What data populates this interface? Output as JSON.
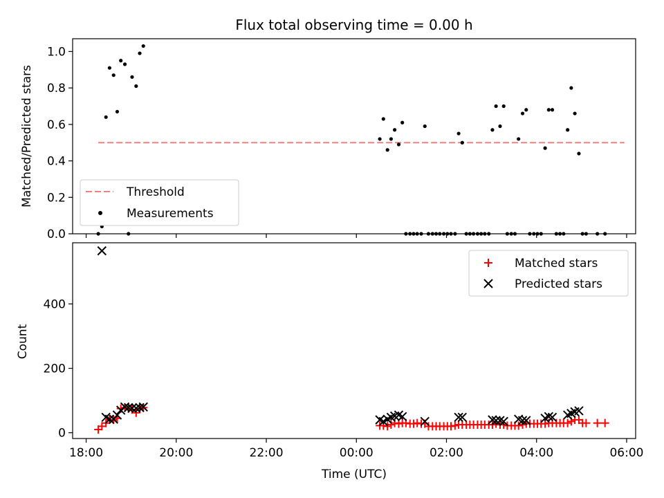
{
  "title": "Flux total observing time = 0.00 h",
  "chart_data": [
    {
      "type": "scatter",
      "panel": "top",
      "ylabel": "Matched/Predicted stars",
      "xlabel": "",
      "xlim_hours": [
        17.7,
        30.2
      ],
      "ylim": [
        0,
        1.07
      ],
      "yticks": [
        "0.0",
        "0.2",
        "0.4",
        "0.6",
        "0.8",
        "1.0"
      ],
      "grid": false,
      "legend_position": "lower-left",
      "threshold": {
        "name": "Threshold",
        "value": 0.5,
        "x_range": [
          18.27,
          29.95
        ],
        "color": "#f08080"
      },
      "series": [
        {
          "name": "Measurements",
          "color": "#000000",
          "points": [
            [
              18.27,
              0.0
            ],
            [
              18.35,
              0.04
            ],
            [
              18.44,
              0.64
            ],
            [
              18.52,
              0.91
            ],
            [
              18.61,
              0.87
            ],
            [
              18.69,
              0.67
            ],
            [
              18.77,
              0.95
            ],
            [
              18.86,
              0.93
            ],
            [
              18.94,
              0.0
            ],
            [
              19.02,
              0.86
            ],
            [
              19.11,
              0.81
            ],
            [
              19.19,
              0.99
            ],
            [
              19.27,
              1.03
            ],
            [
              24.52,
              0.52
            ],
            [
              24.6,
              0.63
            ],
            [
              24.69,
              0.46
            ],
            [
              24.77,
              0.52
            ],
            [
              24.85,
              0.57
            ],
            [
              24.94,
              0.49
            ],
            [
              25.02,
              0.61
            ],
            [
              25.1,
              0.0
            ],
            [
              25.19,
              0.0
            ],
            [
              25.27,
              0.0
            ],
            [
              25.35,
              0.0
            ],
            [
              25.44,
              0.0
            ],
            [
              25.52,
              0.59
            ],
            [
              25.6,
              0.0
            ],
            [
              25.69,
              0.0
            ],
            [
              25.77,
              0.0
            ],
            [
              25.85,
              0.0
            ],
            [
              25.94,
              0.0
            ],
            [
              26.02,
              0.0
            ],
            [
              26.1,
              0.0
            ],
            [
              26.19,
              0.0
            ],
            [
              26.27,
              0.55
            ],
            [
              26.35,
              0.5
            ],
            [
              26.44,
              0.0
            ],
            [
              26.52,
              0.0
            ],
            [
              26.6,
              0.0
            ],
            [
              26.69,
              0.0
            ],
            [
              26.77,
              0.0
            ],
            [
              26.85,
              0.0
            ],
            [
              26.94,
              0.0
            ],
            [
              27.02,
              0.57
            ],
            [
              27.1,
              0.7
            ],
            [
              27.19,
              0.59
            ],
            [
              27.27,
              0.7
            ],
            [
              27.35,
              0.0
            ],
            [
              27.44,
              0.0
            ],
            [
              27.52,
              0.0
            ],
            [
              27.6,
              0.52
            ],
            [
              27.69,
              0.66
            ],
            [
              27.77,
              0.68
            ],
            [
              27.85,
              0.0
            ],
            [
              27.94,
              0.0
            ],
            [
              28.02,
              0.0
            ],
            [
              28.1,
              0.0
            ],
            [
              28.19,
              0.47
            ],
            [
              28.27,
              0.68
            ],
            [
              28.35,
              0.68
            ],
            [
              28.44,
              0.0
            ],
            [
              28.52,
              0.0
            ],
            [
              28.6,
              0.0
            ],
            [
              28.69,
              0.57
            ],
            [
              28.77,
              0.8
            ],
            [
              28.85,
              0.66
            ],
            [
              28.94,
              0.44
            ],
            [
              29.02,
              0.0
            ],
            [
              29.1,
              0.0
            ],
            [
              29.35,
              0.0
            ],
            [
              29.52,
              0.0
            ]
          ]
        }
      ]
    },
    {
      "type": "scatter",
      "panel": "bottom",
      "ylabel": "Count",
      "xlabel": "Time (UTC)",
      "xlim_hours": [
        17.7,
        30.2
      ],
      "ylim": [
        -18,
        590
      ],
      "yticks": [
        "0",
        "200",
        "400"
      ],
      "xticks": [
        "18:00",
        "20:00",
        "22:00",
        "00:00",
        "02:00",
        "04:00",
        "06:00"
      ],
      "xtick_hours": [
        18,
        20,
        22,
        24,
        26,
        28,
        30
      ],
      "grid": false,
      "legend_position": "upper-right",
      "series": [
        {
          "name": "Matched stars",
          "marker": "+",
          "color": "#ff0000",
          "points": [
            [
              18.27,
              10
            ],
            [
              18.35,
              20
            ],
            [
              18.44,
              30
            ],
            [
              18.52,
              40
            ],
            [
              18.61,
              40
            ],
            [
              18.69,
              45
            ],
            [
              18.77,
              75
            ],
            [
              18.86,
              78
            ],
            [
              18.94,
              75
            ],
            [
              19.02,
              72
            ],
            [
              19.11,
              62
            ],
            [
              19.19,
              75
            ],
            [
              19.27,
              78
            ],
            [
              24.52,
              22
            ],
            [
              24.6,
              22
            ],
            [
              24.69,
              20
            ],
            [
              24.77,
              25
            ],
            [
              24.85,
              30
            ],
            [
              24.94,
              28
            ],
            [
              25.02,
              30
            ],
            [
              25.1,
              30
            ],
            [
              25.19,
              28
            ],
            [
              25.27,
              28
            ],
            [
              25.35,
              30
            ],
            [
              25.44,
              28
            ],
            [
              25.52,
              28
            ],
            [
              25.6,
              20
            ],
            [
              25.69,
              20
            ],
            [
              25.77,
              20
            ],
            [
              25.85,
              20
            ],
            [
              25.94,
              20
            ],
            [
              26.02,
              20
            ],
            [
              26.1,
              20
            ],
            [
              26.19,
              22
            ],
            [
              26.27,
              25
            ],
            [
              26.35,
              25
            ],
            [
              26.44,
              25
            ],
            [
              26.52,
              25
            ],
            [
              26.6,
              25
            ],
            [
              26.69,
              25
            ],
            [
              26.77,
              25
            ],
            [
              26.85,
              25
            ],
            [
              26.94,
              25
            ],
            [
              27.02,
              25
            ],
            [
              27.1,
              28
            ],
            [
              27.19,
              25
            ],
            [
              27.27,
              25
            ],
            [
              27.35,
              22
            ],
            [
              27.44,
              22
            ],
            [
              27.52,
              22
            ],
            [
              27.6,
              22
            ],
            [
              27.69,
              25
            ],
            [
              27.77,
              28
            ],
            [
              27.85,
              28
            ],
            [
              27.94,
              28
            ],
            [
              28.02,
              28
            ],
            [
              28.1,
              28
            ],
            [
              28.19,
              28
            ],
            [
              28.27,
              30
            ],
            [
              28.35,
              30
            ],
            [
              28.44,
              30
            ],
            [
              28.52,
              30
            ],
            [
              28.6,
              30
            ],
            [
              28.69,
              30
            ],
            [
              28.77,
              35
            ],
            [
              28.85,
              40
            ],
            [
              28.94,
              40
            ],
            [
              29.02,
              30
            ],
            [
              29.1,
              30
            ],
            [
              29.35,
              30
            ],
            [
              29.52,
              30
            ]
          ]
        },
        {
          "name": "Predicted stars",
          "marker": "x",
          "color": "#000000",
          "points": [
            [
              18.35,
              565
            ],
            [
              18.44,
              48
            ],
            [
              18.52,
              42
            ],
            [
              18.61,
              42
            ],
            [
              18.69,
              55
            ],
            [
              18.77,
              70
            ],
            [
              18.86,
              80
            ],
            [
              18.94,
              78
            ],
            [
              19.02,
              76
            ],
            [
              19.11,
              76
            ],
            [
              19.19,
              78
            ],
            [
              19.27,
              80
            ],
            [
              24.52,
              40
            ],
            [
              24.6,
              35
            ],
            [
              24.69,
              42
            ],
            [
              24.77,
              48
            ],
            [
              24.85,
              52
            ],
            [
              24.94,
              55
            ],
            [
              25.02,
              50
            ],
            [
              25.52,
              35
            ],
            [
              26.27,
              48
            ],
            [
              26.35,
              48
            ],
            [
              27.02,
              40
            ],
            [
              27.1,
              38
            ],
            [
              27.19,
              38
            ],
            [
              27.27,
              35
            ],
            [
              27.6,
              42
            ],
            [
              27.69,
              38
            ],
            [
              27.77,
              38
            ],
            [
              28.19,
              45
            ],
            [
              28.27,
              50
            ],
            [
              28.35,
              48
            ],
            [
              28.69,
              55
            ],
            [
              28.77,
              60
            ],
            [
              28.85,
              65
            ],
            [
              28.94,
              68
            ]
          ]
        }
      ]
    }
  ]
}
